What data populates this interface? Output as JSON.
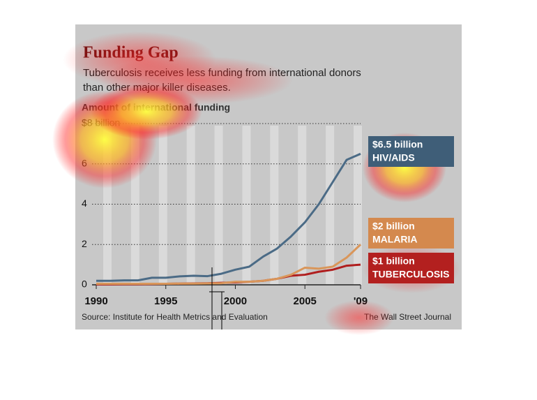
{
  "chart_data": {
    "type": "line",
    "title": "Funding Gap",
    "subtitle": [
      "Tuberculosis receives less funding from international donors",
      "than other major killer diseases."
    ],
    "y_label": "Amount of international funding",
    "source": "Source: Institute for Health Metrics and Evaluation",
    "credit": "The Wall Street Journal",
    "x": [
      1990,
      1991,
      1992,
      1993,
      1994,
      1995,
      1996,
      1997,
      1998,
      1999,
      2000,
      2001,
      2002,
      2003,
      2004,
      2005,
      2006,
      2007,
      2008,
      2009
    ],
    "series": [
      {
        "name": "HIV/AIDS",
        "end_label": "$6.5 billion",
        "color": "#4b6b86",
        "box_color": "#3f5e78",
        "values": [
          0.2,
          0.2,
          0.22,
          0.22,
          0.35,
          0.35,
          0.42,
          0.45,
          0.43,
          0.55,
          0.75,
          0.9,
          1.4,
          1.8,
          2.4,
          3.1,
          4.0,
          5.1,
          6.2,
          6.5
        ]
      },
      {
        "name": "MALARIA",
        "end_label": "$2 billion",
        "color": "#d9965a",
        "box_color": "#d4894e",
        "values": [
          0.05,
          0.05,
          0.05,
          0.05,
          0.05,
          0.05,
          0.06,
          0.06,
          0.07,
          0.08,
          0.15,
          0.15,
          0.2,
          0.3,
          0.5,
          0.85,
          0.8,
          0.9,
          1.35,
          2.0
        ]
      },
      {
        "name": "TUBERCULOSIS",
        "end_label": "$1 billion",
        "color": "#b01e1e",
        "box_color": "#b3201f",
        "values": [
          0.02,
          0.02,
          0.03,
          0.03,
          0.04,
          0.05,
          0.06,
          0.07,
          0.08,
          0.1,
          0.12,
          0.15,
          0.2,
          0.3,
          0.45,
          0.5,
          0.65,
          0.75,
          0.95,
          1.0
        ]
      }
    ],
    "xlim": [
      1990,
      2009
    ],
    "xticks": [
      1990,
      1995,
      2000,
      2005,
      {
        "value": 2009,
        "label": "'09"
      }
    ],
    "ylim": [
      0,
      8
    ],
    "yticks": [
      0,
      2,
      4,
      6,
      {
        "value": 8,
        "label": "$8 billion"
      }
    ],
    "grid": true
  }
}
